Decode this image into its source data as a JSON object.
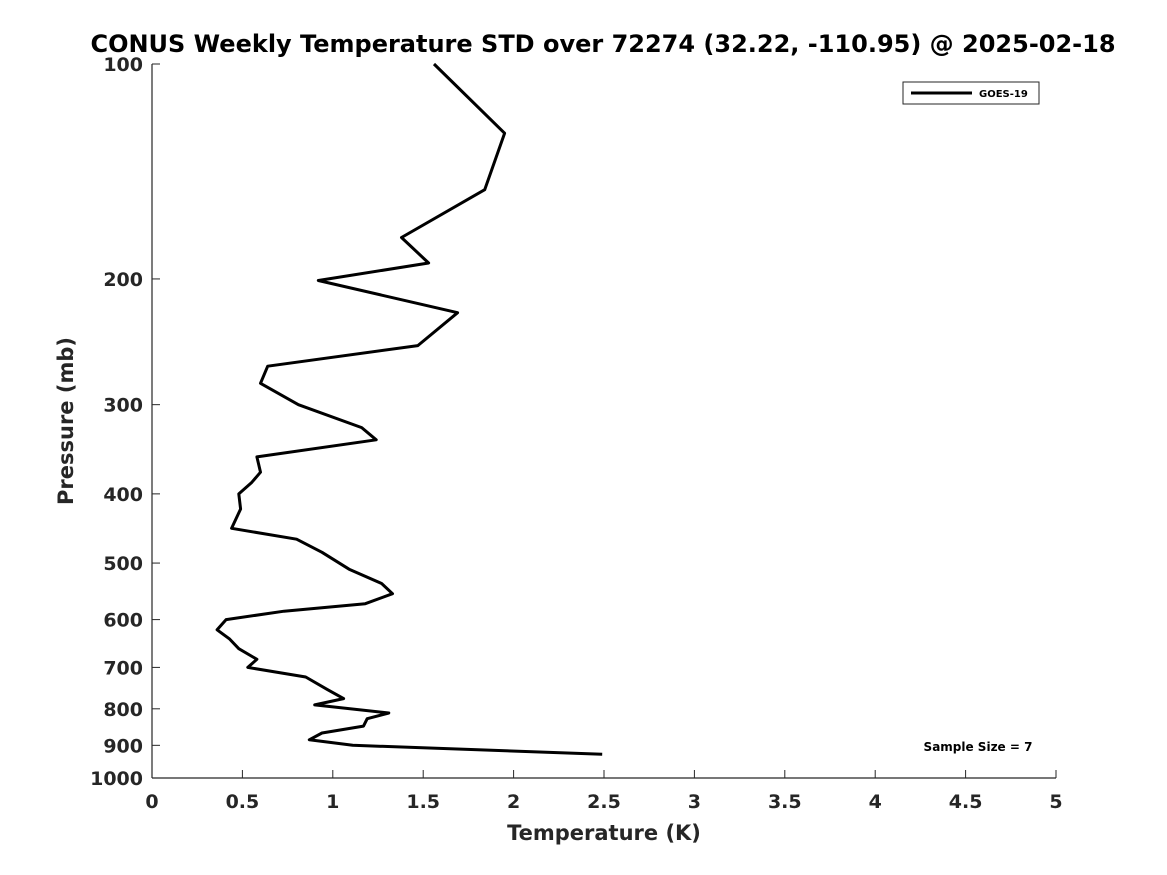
{
  "chart_data": {
    "type": "line",
    "title": "CONUS Weekly Temperature STD over 72274 (32.22, -110.95) @ 2025-02-18",
    "xlabel": "Temperature (K)",
    "ylabel": "Pressure (mb)",
    "xlim": [
      0,
      5
    ],
    "ylim": [
      1000,
      100
    ],
    "y_scale": "log",
    "x_ticks": [
      "0",
      "0.5",
      "1",
      "1.5",
      "2",
      "2.5",
      "3",
      "3.5",
      "4",
      "4.5",
      "5"
    ],
    "y_ticks": [
      "100",
      "200",
      "300",
      "400",
      "500",
      "600",
      "700",
      "800",
      "900",
      "1000"
    ],
    "grid": false,
    "legend_position": "top-right",
    "annotation": "Sample Size = 7",
    "series": [
      {
        "name": "GOES-19",
        "color": "#000000",
        "points": [
          [
            1.56,
            100
          ],
          [
            1.95,
            125
          ],
          [
            1.84,
            150
          ],
          [
            1.38,
            175
          ],
          [
            1.53,
            190
          ],
          [
            0.92,
            201
          ],
          [
            1.69,
            223
          ],
          [
            1.47,
            248
          ],
          [
            0.64,
            265
          ],
          [
            0.6,
            280
          ],
          [
            0.81,
            300
          ],
          [
            1.16,
            323
          ],
          [
            1.24,
            336
          ],
          [
            0.58,
            355
          ],
          [
            0.6,
            373
          ],
          [
            0.55,
            386
          ],
          [
            0.48,
            400
          ],
          [
            0.49,
            420
          ],
          [
            0.44,
            447
          ],
          [
            0.8,
            463
          ],
          [
            0.94,
            483
          ],
          [
            1.09,
            510
          ],
          [
            1.27,
            534
          ],
          [
            1.33,
            552
          ],
          [
            1.18,
            570
          ],
          [
            0.73,
            584
          ],
          [
            0.41,
            600
          ],
          [
            0.36,
            620
          ],
          [
            0.43,
            639
          ],
          [
            0.48,
            659
          ],
          [
            0.58,
            682
          ],
          [
            0.53,
            700
          ],
          [
            0.85,
            722
          ],
          [
            0.97,
            752
          ],
          [
            1.06,
            774
          ],
          [
            0.9,
            790
          ],
          [
            1.31,
            811
          ],
          [
            1.19,
            826
          ],
          [
            1.17,
            846
          ],
          [
            0.94,
            865
          ],
          [
            0.87,
            884
          ],
          [
            1.11,
            900
          ],
          [
            2.49,
            926
          ]
        ]
      }
    ]
  }
}
